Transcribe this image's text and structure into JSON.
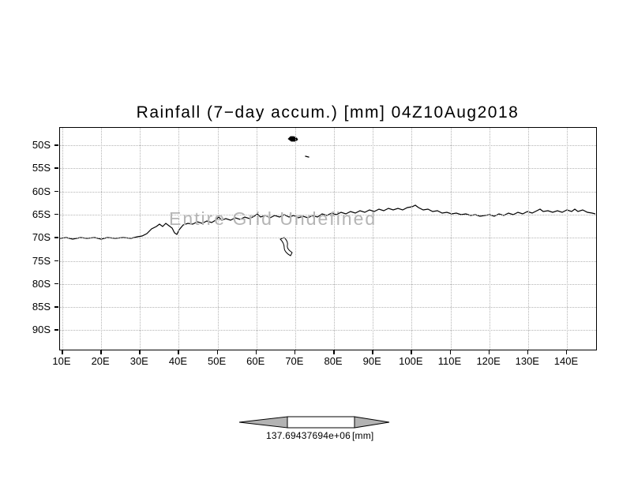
{
  "figure": {
    "title": "Rainfall (7−day accum.) [mm] 04Z10Aug2018",
    "annotation": "Entire Grid Undefined"
  },
  "axes": {
    "lat_ticks": [
      "50S",
      "55S",
      "60S",
      "65S",
      "70S",
      "75S",
      "80S",
      "85S",
      "90S"
    ],
    "lon_ticks": [
      "10E",
      "20E",
      "30E",
      "40E",
      "50E",
      "60E",
      "70E",
      "80E",
      "90E",
      "100E",
      "110E",
      "120E",
      "130E",
      "140E"
    ]
  },
  "colorbar": {
    "left_label": "137.694",
    "right_label": "37694e+06",
    "unit": "[mm]"
  },
  "chart_data": {
    "type": "heatmap",
    "title": "Rainfall (7−day accum.) [mm] 04Z10Aug2018",
    "xlabel": "",
    "ylabel": "",
    "x_tick_labels": [
      "10E",
      "20E",
      "30E",
      "40E",
      "50E",
      "60E",
      "70E",
      "80E",
      "90E",
      "100E",
      "110E",
      "120E",
      "130E",
      "140E"
    ],
    "y_tick_labels": [
      "50S",
      "55S",
      "60S",
      "65S",
      "70S",
      "75S",
      "80S",
      "85S",
      "90S"
    ],
    "grid": true,
    "values": [],
    "status": "Entire Grid Undefined",
    "annotations": [
      "Entire Grid Undefined"
    ],
    "colorbar_tick_labels": [
      "137.694",
      "37694e+06"
    ],
    "units": "mm",
    "legend_position": "bottom",
    "basemap": "Antarctic coastline (10E-140E, 50S-90S)"
  }
}
